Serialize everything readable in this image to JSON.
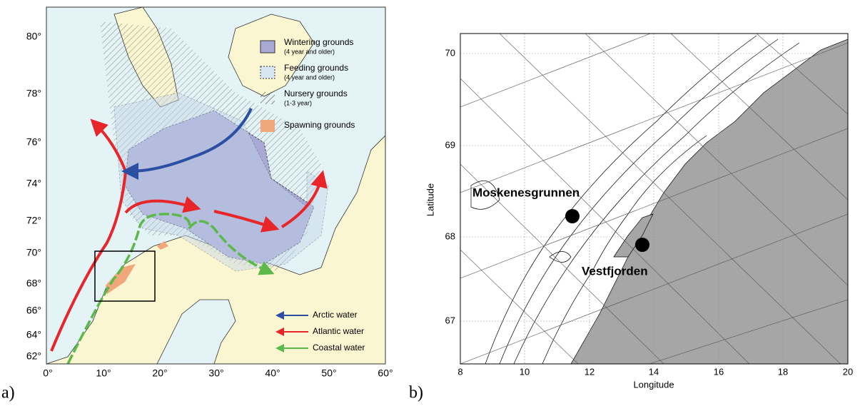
{
  "panel_a": {
    "label": "a)",
    "lat_ticks": [
      "80°",
      "78°",
      "76°",
      "74°",
      "72°",
      "70°",
      "68°",
      "66°",
      "64°",
      "62°"
    ],
    "lon_ticks": [
      "0°",
      "10°",
      "20°",
      "30°",
      "40°",
      "50°",
      "60°"
    ],
    "legend": [
      {
        "label": "Wintering grounds",
        "note": "(4 year and older)"
      },
      {
        "label": "Feeding grounds",
        "note": "(4 year and older)"
      },
      {
        "label": "Nursery grounds",
        "note": "(1-3 year)"
      },
      {
        "label": "Spawning grounds"
      }
    ],
    "water_legend": [
      "Arctic water",
      "Atlantic water",
      "Coastal water"
    ]
  },
  "panel_b": {
    "label": "b)",
    "x_label": "Longitude",
    "y_label": "Latitude",
    "x_ticks": [
      "8",
      "10",
      "12",
      "14",
      "16",
      "18",
      "20"
    ],
    "y_ticks": [
      "70",
      "69",
      "68",
      "67"
    ],
    "places": [
      "Moskenesgrunnen",
      "Vestfjorden"
    ]
  }
}
